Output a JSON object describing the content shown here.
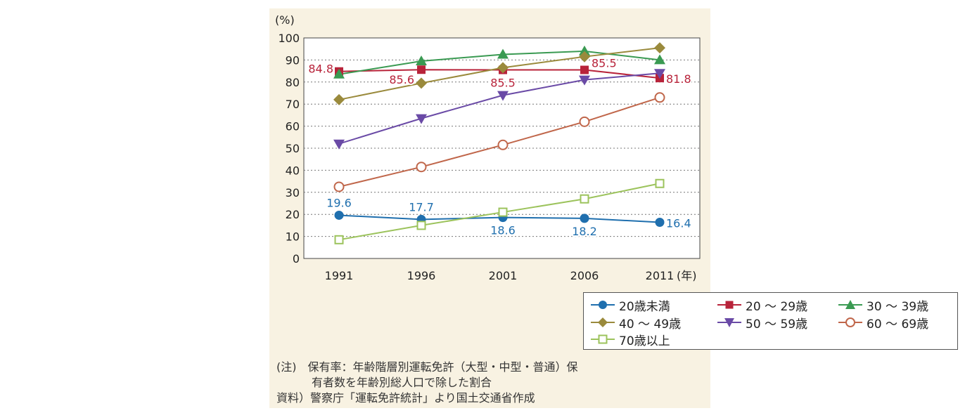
{
  "chart_data": {
    "type": "line",
    "y_unit_label": "(%)",
    "x_unit_label": "(年)",
    "x": [
      "1991",
      "1996",
      "2001",
      "2006",
      "2011"
    ],
    "ylim": [
      0,
      100
    ],
    "yticks": [
      0,
      10,
      20,
      30,
      40,
      50,
      60,
      70,
      80,
      90,
      100
    ],
    "grid": "horizontal-dotted",
    "legend_position": "bottom",
    "series": [
      {
        "name": "20歳未満",
        "values": [
          19.6,
          17.7,
          18.6,
          18.2,
          16.4
        ],
        "color": "#1f6fae",
        "marker": "filled-circle",
        "labels": [
          {
            "index": 0,
            "text": "19.6",
            "pos": "above"
          },
          {
            "index": 1,
            "text": "17.7",
            "pos": "above"
          },
          {
            "index": 2,
            "text": "18.6",
            "pos": "below"
          },
          {
            "index": 3,
            "text": "18.2",
            "pos": "below"
          },
          {
            "index": 4,
            "text": "16.4",
            "pos": "right"
          }
        ]
      },
      {
        "name": "20 ～ 29歳",
        "values": [
          84.8,
          85.6,
          85.5,
          85.5,
          81.8
        ],
        "color": "#b8233a",
        "marker": "filled-square",
        "labels": [
          {
            "index": 0,
            "text": "84.8",
            "pos": "left"
          },
          {
            "index": 1,
            "text": "85.6",
            "pos": "below-left"
          },
          {
            "index": 2,
            "text": "85.5",
            "pos": "below"
          },
          {
            "index": 3,
            "text": "85.5",
            "pos": "above-right"
          },
          {
            "index": 4,
            "text": "81.8",
            "pos": "right"
          }
        ]
      },
      {
        "name": "30 ～ 39歳",
        "values": [
          83.5,
          89.5,
          92.5,
          94.0,
          90.0
        ],
        "color": "#3a9a52",
        "marker": "filled-triangle-up",
        "labels": []
      },
      {
        "name": "40 ～ 49歳",
        "values": [
          72.0,
          79.5,
          86.5,
          91.5,
          95.5
        ],
        "color": "#9a8a3c",
        "marker": "filled-diamond",
        "labels": []
      },
      {
        "name": "50 ～ 59歳",
        "values": [
          52.0,
          63.5,
          74.0,
          81.0,
          84.0
        ],
        "color": "#6a4aa6",
        "marker": "filled-triangle-down",
        "labels": []
      },
      {
        "name": "60 ～ 69歳",
        "values": [
          32.5,
          41.5,
          51.5,
          62.0,
          73.0
        ],
        "color": "#c0664a",
        "marker": "open-circle",
        "labels": []
      },
      {
        "name": "70歳以上",
        "values": [
          8.5,
          15.0,
          21.0,
          27.0,
          34.0
        ],
        "color": "#9cc35c",
        "marker": "open-square",
        "labels": []
      }
    ]
  },
  "notes": {
    "note_line1": "(注)　保有率：年齢階層別運転免許（大型・中型・普通）保",
    "note_line2": "有者数を年齢別総人口で除した割合",
    "source": "資料）警察庁「運転免許統計」より国土交通省作成"
  }
}
